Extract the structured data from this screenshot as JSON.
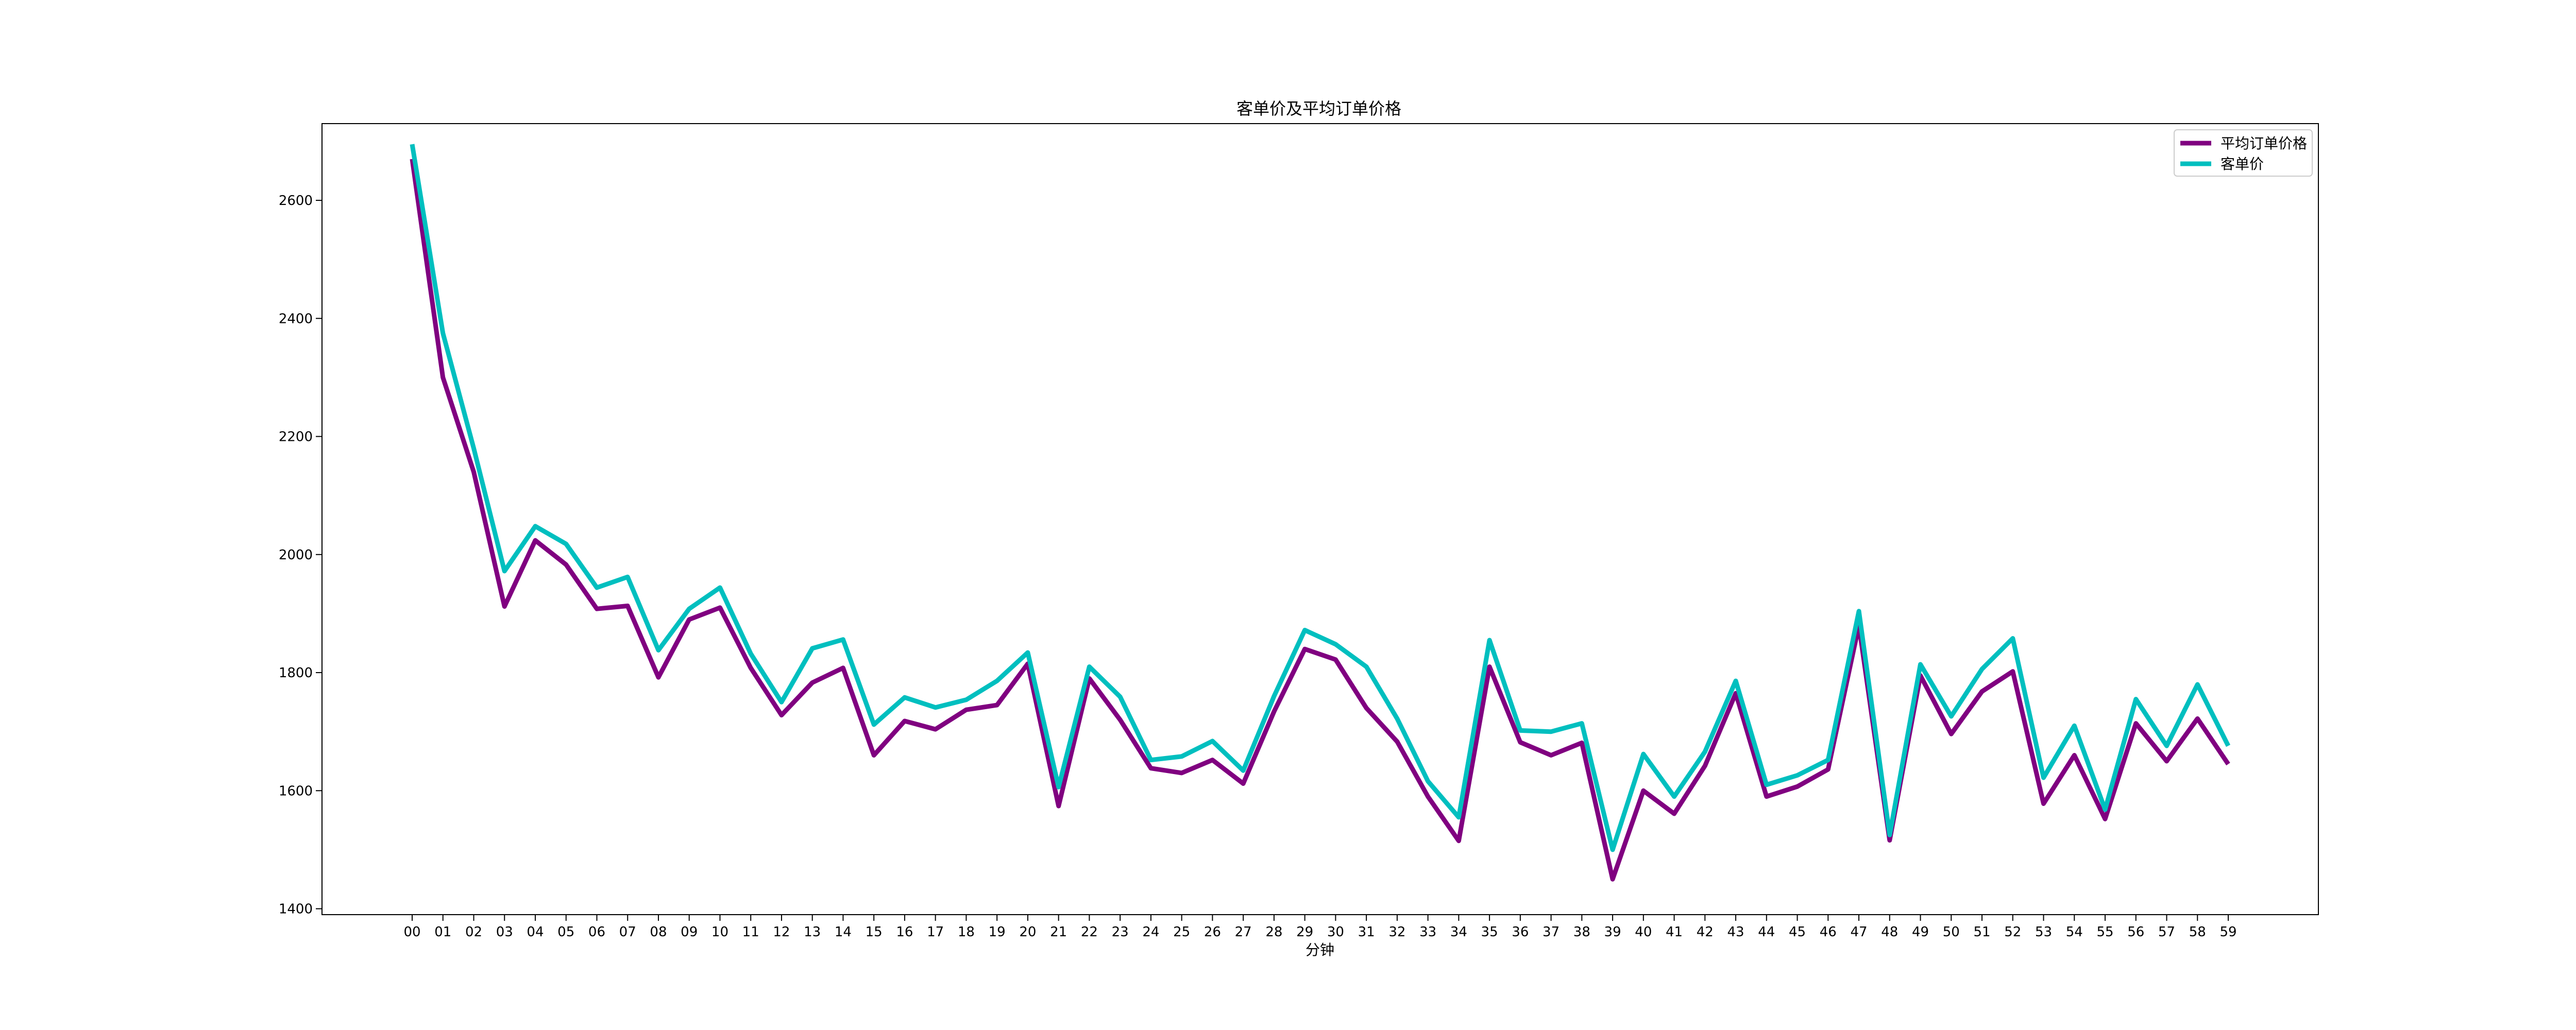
{
  "chart_data": {
    "type": "line",
    "title": "客单价及平均订单价格",
    "xlabel": "分钟",
    "ylabel": "",
    "categories": [
      "00",
      "01",
      "02",
      "03",
      "04",
      "05",
      "06",
      "07",
      "08",
      "09",
      "10",
      "11",
      "12",
      "13",
      "14",
      "15",
      "16",
      "17",
      "18",
      "19",
      "20",
      "21",
      "22",
      "23",
      "24",
      "25",
      "26",
      "27",
      "28",
      "29",
      "30",
      "31",
      "32",
      "33",
      "34",
      "35",
      "36",
      "37",
      "38",
      "39",
      "40",
      "41",
      "42",
      "43",
      "44",
      "45",
      "46",
      "47",
      "48",
      "49",
      "50",
      "51",
      "52",
      "53",
      "54",
      "55",
      "56",
      "57",
      "58",
      "59"
    ],
    "ylim": [
      1390,
      2730
    ],
    "yticks": [
      1400,
      1600,
      1800,
      2000,
      2200,
      2400,
      2600
    ],
    "grid": false,
    "legend_position": "top-right",
    "series": [
      {
        "name": "平均订单价格",
        "color": "#800080",
        "values": [
          2670,
          2300,
          2140,
          1912,
          2024,
          1983,
          1908,
          1913,
          1792,
          1890,
          1910,
          1808,
          1728,
          1783,
          1808,
          1660,
          1718,
          1704,
          1737,
          1745,
          1815,
          1574,
          1790,
          1720,
          1638,
          1630,
          1652,
          1612,
          1734,
          1840,
          1822,
          1740,
          1683,
          1590,
          1515,
          1810,
          1682,
          1660,
          1681,
          1450,
          1600,
          1561,
          1642,
          1765,
          1590,
          1607,
          1636,
          1880,
          1516,
          1795,
          1696,
          1768,
          1802,
          1578,
          1660,
          1552,
          1714,
          1650,
          1722,
          1645
        ]
      },
      {
        "name": "客单价",
        "color": "#00BFBF",
        "values": [
          2695,
          2375,
          2180,
          1972,
          2048,
          2018,
          1944,
          1962,
          1838,
          1908,
          1944,
          1832,
          1750,
          1841,
          1856,
          1712,
          1758,
          1741,
          1754,
          1786,
          1834,
          1606,
          1810,
          1759,
          1652,
          1658,
          1684,
          1634,
          1760,
          1872,
          1848,
          1810,
          1722,
          1616,
          1555,
          1855,
          1702,
          1700,
          1714,
          1500,
          1662,
          1590,
          1666,
          1786,
          1610,
          1626,
          1652,
          1904,
          1525,
          1814,
          1726,
          1806,
          1858,
          1622,
          1710,
          1568,
          1755,
          1676,
          1780,
          1676
        ]
      }
    ]
  }
}
